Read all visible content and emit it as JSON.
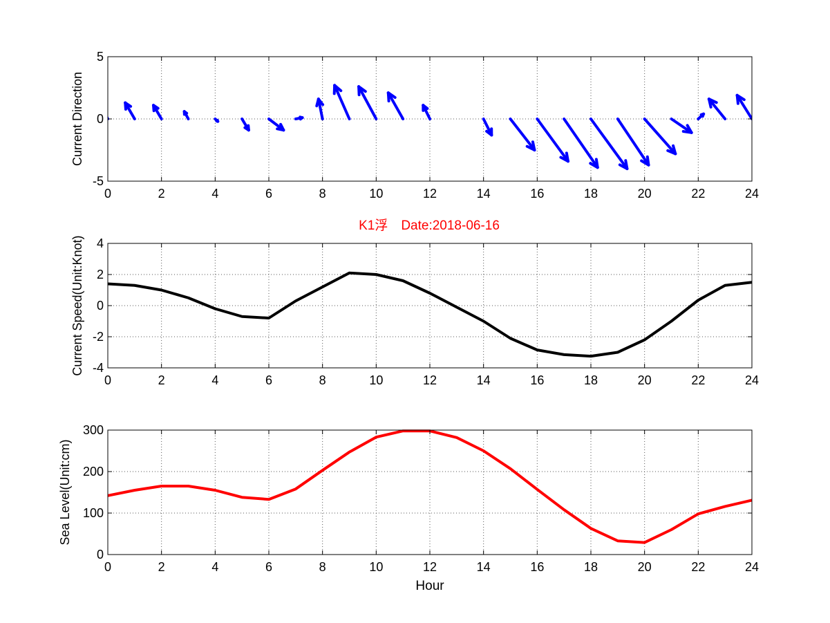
{
  "colors": {
    "arrows": "#0000ff",
    "speed_line": "#000000",
    "sea_line": "#ff0000",
    "title": "#ff0000",
    "grid": "#555555",
    "axes": "#000000"
  },
  "figure_title": "K1浮　Date:2018-06-16",
  "chart_data": [
    {
      "type": "quiver",
      "ylabel": "Current Direction",
      "xlabel": "",
      "xlim": [
        0,
        24
      ],
      "ylim": [
        -5,
        5
      ],
      "xticks": [
        "0",
        "2",
        "4",
        "6",
        "8",
        "10",
        "12",
        "14",
        "16",
        "18",
        "20",
        "22",
        "24"
      ],
      "yticks": [
        "-5",
        "0",
        "5"
      ],
      "grid": true,
      "x": [
        0,
        1,
        2,
        3,
        4,
        5,
        6,
        7,
        8,
        9,
        10,
        11,
        12,
        13,
        14,
        15,
        16,
        17,
        18,
        19,
        20,
        21,
        22,
        23,
        24
      ],
      "u": [
        1.3,
        1.2,
        1.0,
        0.5,
        -0.2,
        -0.8,
        -0.9,
        0.3,
        1.2,
        2.1,
        2.0,
        1.6,
        0.8,
        0.0,
        -1.1,
        -2.1,
        -2.8,
        -3.15,
        -3.25,
        -3.0,
        -2.3,
        -1.0,
        0.4,
        1.3,
        1.5
      ],
      "v": [],
      "arrow_components": [
        {
          "du": -0.35,
          "dv": 1.6
        },
        {
          "du": -0.35,
          "dv": 1.3
        },
        {
          "du": -0.3,
          "dv": 1.1
        },
        {
          "du": -0.15,
          "dv": 0.6
        },
        {
          "du": 0.1,
          "dv": -0.2
        },
        {
          "du": 0.25,
          "dv": -0.9
        },
        {
          "du": 0.55,
          "dv": -0.9
        },
        {
          "du": 0.25,
          "dv": 0.1
        },
        {
          "du": -0.15,
          "dv": 1.6
        },
        {
          "du": -0.55,
          "dv": 2.7
        },
        {
          "du": -0.65,
          "dv": 2.6
        },
        {
          "du": -0.55,
          "dv": 2.1
        },
        {
          "du": -0.25,
          "dv": 1.1
        },
        {
          "du": 0.0,
          "dv": 0.0
        },
        {
          "du": 0.3,
          "dv": -1.3
        },
        {
          "du": 0.9,
          "dv": -2.5
        },
        {
          "du": 1.15,
          "dv": -3.4
        },
        {
          "du": 1.25,
          "dv": -3.9
        },
        {
          "du": 1.35,
          "dv": -4.0
        },
        {
          "du": 1.15,
          "dv": -3.7
        },
        {
          "du": 1.15,
          "dv": -2.8
        },
        {
          "du": 0.75,
          "dv": -1.1
        },
        {
          "du": 0.2,
          "dv": 0.4
        },
        {
          "du": -0.6,
          "dv": 1.6
        },
        {
          "du": -0.55,
          "dv": 1.9
        }
      ]
    },
    {
      "type": "line",
      "ylabel": "Current Speed(Unit:Knot)",
      "xlabel": "",
      "xlim": [
        0,
        24
      ],
      "ylim": [
        -4,
        4
      ],
      "xticks": [
        "0",
        "2",
        "4",
        "6",
        "8",
        "10",
        "12",
        "14",
        "16",
        "18",
        "20",
        "22",
        "24"
      ],
      "yticks": [
        "-4",
        "-2",
        "0",
        "2",
        "4"
      ],
      "grid": true,
      "x": [
        0,
        1,
        2,
        3,
        4,
        5,
        6,
        7,
        8,
        9,
        10,
        11,
        12,
        13,
        14,
        15,
        16,
        17,
        18,
        19,
        20,
        21,
        22,
        23,
        24
      ],
      "y": [
        1.4,
        1.3,
        1.0,
        0.5,
        -0.2,
        -0.7,
        -0.8,
        0.3,
        1.2,
        2.1,
        2.0,
        1.6,
        0.8,
        -0.1,
        -1.0,
        -2.1,
        -2.85,
        -3.15,
        -3.25,
        -3.0,
        -2.2,
        -1.0,
        0.35,
        1.3,
        1.5
      ]
    },
    {
      "type": "line",
      "ylabel": "Sea Level(Unit:cm)",
      "xlabel": "Hour",
      "xlim": [
        0,
        24
      ],
      "ylim": [
        0,
        300
      ],
      "xticks": [
        "0",
        "2",
        "4",
        "6",
        "8",
        "10",
        "12",
        "14",
        "16",
        "18",
        "20",
        "22",
        "24"
      ],
      "yticks": [
        "0",
        "100",
        "200",
        "300"
      ],
      "grid": true,
      "x": [
        0,
        1,
        2,
        3,
        4,
        5,
        6,
        7,
        8,
        9,
        10,
        11,
        12,
        13,
        14,
        15,
        16,
        17,
        18,
        19,
        20,
        21,
        22,
        23,
        24
      ],
      "y": [
        142,
        155,
        165,
        165,
        155,
        138,
        133,
        158,
        203,
        247,
        283,
        298,
        298,
        282,
        250,
        207,
        157,
        108,
        63,
        33,
        29,
        60,
        98,
        116,
        131
      ]
    }
  ]
}
